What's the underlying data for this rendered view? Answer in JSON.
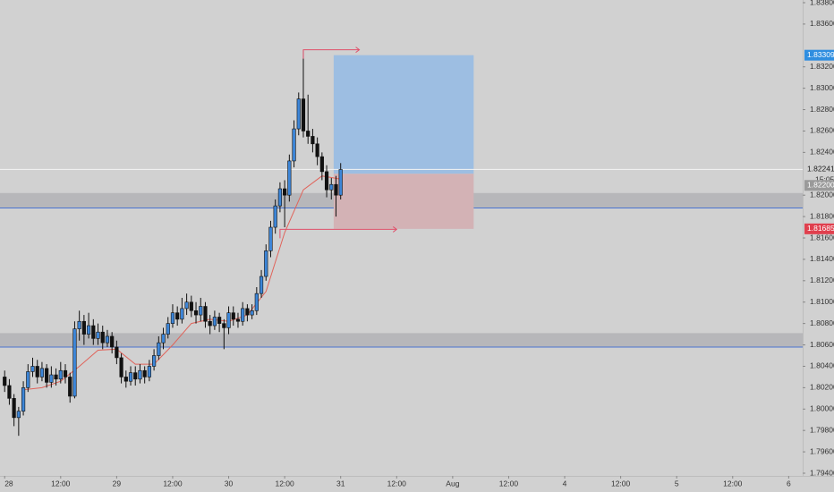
{
  "chart_data": {
    "type": "candlestick",
    "x": [
      0,
      1,
      2,
      3,
      4,
      5,
      6,
      7,
      8,
      9,
      10,
      11,
      12,
      13,
      14,
      15,
      16,
      17,
      18,
      19,
      20,
      21,
      22,
      23,
      24,
      25,
      26,
      27,
      28,
      29,
      30,
      31,
      32,
      33,
      34,
      35,
      36,
      37,
      38,
      39,
      40,
      41,
      42,
      43,
      44,
      45,
      46,
      47,
      48,
      49,
      50,
      51,
      52,
      53,
      54,
      55,
      56,
      57,
      58,
      59,
      60,
      61,
      62,
      63,
      64,
      65,
      66,
      67,
      68,
      69,
      70,
      71,
      72
    ],
    "open": [
      1.803,
      1.8022,
      1.801,
      1.7992,
      1.7998,
      1.802,
      1.8035,
      1.804,
      1.803,
      1.8038,
      1.8025,
      1.8032,
      1.8028,
      1.8036,
      1.803,
      1.8012,
      1.8075,
      1.8082,
      1.807,
      1.8078,
      1.8066,
      1.8072,
      1.8062,
      1.8068,
      1.8058,
      1.8048,
      1.803,
      1.8026,
      1.8034,
      1.8028,
      1.8036,
      1.803,
      1.804,
      1.805,
      1.8062,
      1.807,
      1.808,
      1.809,
      1.8084,
      1.8094,
      1.81,
      1.8092,
      1.8088,
      1.8096,
      1.8082,
      1.8078,
      1.8086,
      1.808,
      1.8076,
      1.809,
      1.8084,
      1.8082,
      1.8094,
      1.8088,
      1.8092,
      1.8108,
      1.8124,
      1.8148,
      1.817,
      1.819,
      1.8206,
      1.82,
      1.8232,
      1.8262,
      1.829,
      1.826,
      1.8255,
      1.8248,
      1.8236,
      1.8222,
      1.8205,
      1.821,
      1.82
    ],
    "high": [
      1.8036,
      1.8028,
      1.8014,
      1.8002,
      1.8026,
      1.8042,
      1.8048,
      1.8046,
      1.8044,
      1.8042,
      1.804,
      1.8038,
      1.8044,
      1.8042,
      1.8034,
      1.8082,
      1.8092,
      1.8088,
      1.809,
      1.8084,
      1.808,
      1.8078,
      1.8074,
      1.8072,
      1.8064,
      1.8052,
      1.8036,
      1.804,
      1.804,
      1.8042,
      1.804,
      1.8046,
      1.8056,
      1.8068,
      1.8076,
      1.8086,
      1.8098,
      1.8096,
      1.8104,
      1.8108,
      1.8106,
      1.81,
      1.8104,
      1.81,
      1.8088,
      1.8092,
      1.809,
      1.8084,
      1.8096,
      1.8096,
      1.809,
      1.81,
      1.8098,
      1.8098,
      1.8114,
      1.813,
      1.8154,
      1.8176,
      1.8196,
      1.8212,
      1.8214,
      1.8238,
      1.827,
      1.8296,
      1.8336,
      1.8294,
      1.8262,
      1.8254,
      1.824,
      1.8228,
      1.8216,
      1.8218,
      1.823
    ],
    "low": [
      1.8016,
      1.8004,
      1.7984,
      1.7975,
      1.7994,
      1.8016,
      1.803,
      1.8024,
      1.8026,
      1.802,
      1.802,
      1.8022,
      1.8024,
      1.8024,
      1.8006,
      1.801,
      1.8064,
      1.806,
      1.8066,
      1.806,
      1.806,
      1.8056,
      1.8058,
      1.8052,
      1.8042,
      1.8024,
      1.802,
      1.8022,
      1.8022,
      1.8024,
      1.8024,
      1.8026,
      1.8036,
      1.8046,
      1.8056,
      1.8066,
      1.8076,
      1.8078,
      1.808,
      1.8088,
      1.8086,
      1.808,
      1.8082,
      1.8076,
      1.807,
      1.8074,
      1.8072,
      1.8056,
      1.807,
      1.8078,
      1.8076,
      1.8078,
      1.8082,
      1.8084,
      1.8088,
      1.8104,
      1.812,
      1.8142,
      1.8164,
      1.8184,
      1.817,
      1.8194,
      1.8226,
      1.8256,
      1.8254,
      1.8248,
      1.824,
      1.8228,
      1.8214,
      1.8198,
      1.8196,
      1.818,
      1.8196
    ],
    "close": [
      1.8022,
      1.801,
      1.7992,
      1.7998,
      1.802,
      1.8035,
      1.804,
      1.803,
      1.8038,
      1.8025,
      1.8032,
      1.8028,
      1.8036,
      1.803,
      1.8012,
      1.8075,
      1.8082,
      1.807,
      1.8078,
      1.8066,
      1.8072,
      1.8062,
      1.8068,
      1.8058,
      1.8048,
      1.803,
      1.8026,
      1.8034,
      1.8028,
      1.8036,
      1.803,
      1.804,
      1.805,
      1.8062,
      1.807,
      1.808,
      1.809,
      1.8084,
      1.8094,
      1.81,
      1.8092,
      1.8088,
      1.8096,
      1.8082,
      1.8078,
      1.8086,
      1.808,
      1.8076,
      1.809,
      1.8084,
      1.8082,
      1.8094,
      1.8088,
      1.8092,
      1.8108,
      1.8124,
      1.8148,
      1.817,
      1.819,
      1.8206,
      1.82,
      1.8232,
      1.8262,
      1.829,
      1.826,
      1.8255,
      1.8248,
      1.8236,
      1.8222,
      1.8205,
      1.821,
      1.82,
      1.8224
    ],
    "up_color": "#3d86d8",
    "down_color": "#111111",
    "ma": {
      "x": [
        4,
        8,
        12,
        16,
        20,
        24,
        28,
        32,
        36,
        40,
        44,
        48,
        52,
        56,
        60,
        64,
        68,
        72
      ],
      "values": [
        1.8018,
        1.802,
        1.8026,
        1.804,
        1.8055,
        1.8056,
        1.8042,
        1.8042,
        1.806,
        1.808,
        1.8084,
        1.8082,
        1.8088,
        1.811,
        1.8165,
        1.8205,
        1.8218,
        1.8215
      ],
      "color": "#e0635a"
    },
    "zones": [
      {
        "from": 1.8188,
        "to": 1.8202
      },
      {
        "from": 1.8058,
        "to": 1.8071
      }
    ],
    "zone_color": "#b3b3b6",
    "zone_line_color": "#4a73d0",
    "position": {
      "x": [
        70.5,
        100.5
      ],
      "target": {
        "value": 1.83309,
        "label": "1.83309"
      },
      "entry": {
        "value": 1.822,
        "label": "1.82200"
      },
      "stop": {
        "value": 1.81685,
        "label": "1.81685"
      },
      "target_color": "#9dbee2",
      "stop_color": "#d3b2b5"
    },
    "arrows": [
      {
        "y": 1.8336,
        "x": [
          64,
          76
        ]
      },
      {
        "y": 1.8168,
        "x": [
          59,
          84
        ]
      }
    ],
    "arrow_color": "#e0506a",
    "last_price": {
      "value": 1.82241,
      "label": "1.82241"
    },
    "countdown": "15:05",
    "xlim": [
      -1,
      171
    ],
    "ylim": [
      1.79375,
      1.83825
    ],
    "xticks": [
      {
        "value": 0,
        "label": "28"
      },
      {
        "value": 12,
        "label": "12:00"
      },
      {
        "value": 24,
        "label": "29"
      },
      {
        "value": 36,
        "label": "12:00"
      },
      {
        "value": 48,
        "label": "30"
      },
      {
        "value": 60,
        "label": "12:00"
      },
      {
        "value": 72,
        "label": "31"
      },
      {
        "value": 84,
        "label": "12:00"
      },
      {
        "value": 96,
        "label": "Aug"
      },
      {
        "value": 108,
        "label": "12:00"
      },
      {
        "value": 120,
        "label": "4"
      },
      {
        "value": 132,
        "label": "12:00"
      },
      {
        "value": 144,
        "label": "5"
      },
      {
        "value": 156,
        "label": "12:00"
      },
      {
        "value": 168,
        "label": "6"
      }
    ],
    "yticks": [
      {
        "value": 1.838,
        "label": "1.83800"
      },
      {
        "value": 1.836,
        "label": "1.83600"
      },
      {
        "value": 1.832,
        "label": "1.83200"
      },
      {
        "value": 1.83,
        "label": "1.83000"
      },
      {
        "value": 1.828,
        "label": "1.82800"
      },
      {
        "value": 1.826,
        "label": "1.82600"
      },
      {
        "value": 1.824,
        "label": "1.82400"
      },
      {
        "value": 1.82,
        "label": "1.82000"
      },
      {
        "value": 1.818,
        "label": "1.81800"
      },
      {
        "value": 1.816,
        "label": "1.81600"
      },
      {
        "value": 1.814,
        "label": "1.81400"
      },
      {
        "value": 1.812,
        "label": "1.81200"
      },
      {
        "value": 1.81,
        "label": "1.81000"
      },
      {
        "value": 1.808,
        "label": "1.80800"
      },
      {
        "value": 1.806,
        "label": "1.80600"
      },
      {
        "value": 1.804,
        "label": "1.80400"
      },
      {
        "value": 1.802,
        "label": "1.80200"
      },
      {
        "value": 1.8,
        "label": "1.80000"
      },
      {
        "value": 1.798,
        "label": "1.79800"
      },
      {
        "value": 1.796,
        "label": "1.79600"
      },
      {
        "value": 1.794,
        "label": "1.79400"
      }
    ],
    "grid": false
  }
}
